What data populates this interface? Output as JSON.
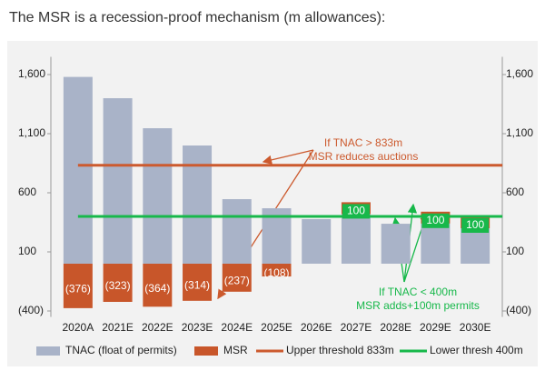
{
  "chart_data": {
    "type": "bar",
    "title": "The MSR is a recession-proof mechanism (m allowances):",
    "categories": [
      "2020A",
      "2021E",
      "2022E",
      "2023E",
      "2024E",
      "2025E",
      "2026E",
      "2027E",
      "2028E",
      "2029E",
      "2030E"
    ],
    "series": [
      {
        "name": "TNAC (float of permits)",
        "color": "#a9b3c8",
        "values": [
          1580,
          1400,
          1146,
          1000,
          546,
          469,
          377,
          420,
          338,
          340,
          300
        ]
      },
      {
        "name": "MSR",
        "color": "#c8562a",
        "values": [
          -376,
          -323,
          -364,
          -314,
          -237,
          -108,
          null,
          100,
          null,
          100,
          100
        ],
        "value_labels": [
          "(376)",
          "(323)",
          "(364)",
          "(314)",
          "(237)",
          "(108)",
          null,
          "100",
          null,
          "100",
          "100"
        ]
      }
    ],
    "thresholds": [
      {
        "name": "Upper threshold 833m",
        "color": "#cc5a2e",
        "value": 833
      },
      {
        "name": "Lower thresh 400m",
        "color": "#17b84a",
        "value": 400
      }
    ],
    "annotations": [
      {
        "lines": [
          "If TNAC > 833m",
          "MSR reduces auctions"
        ],
        "color": "#cc5a2e"
      },
      {
        "lines": [
          "If TNAC < 400m",
          "MSR adds+100m  permits"
        ],
        "color": "#17b84a"
      }
    ],
    "ylim": [
      -450,
      1750
    ],
    "yticks": [
      {
        "value": 1600,
        "label": "1,600"
      },
      {
        "value": 1100,
        "label": "1,100"
      },
      600,
      100,
      {
        "value": -400,
        "label": "(400)"
      }
    ]
  }
}
